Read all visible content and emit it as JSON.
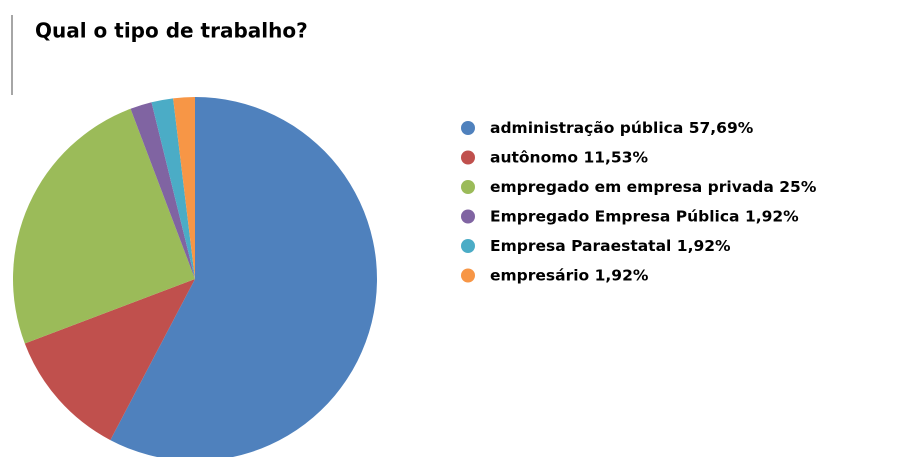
{
  "chart_data": {
    "type": "pie",
    "title": "Qual o tipo de trabalho?",
    "categories": [
      "administração pública",
      "autônomo",
      "empregado em empresa privada",
      "Empregado Empresa Pública",
      "Empresa Paraestatal",
      "empresário"
    ],
    "values": [
      57.69,
      11.53,
      25,
      1.92,
      1.92,
      1.92
    ],
    "value_labels": [
      "57,69%",
      "11,53%",
      "25%",
      "1,92%",
      "1,92%",
      "1,92%"
    ],
    "colors": [
      "#4f81bd",
      "#c0504d",
      "#9bbb59",
      "#8064a2",
      "#4bacc6",
      "#f79646"
    ],
    "legend": "right"
  }
}
